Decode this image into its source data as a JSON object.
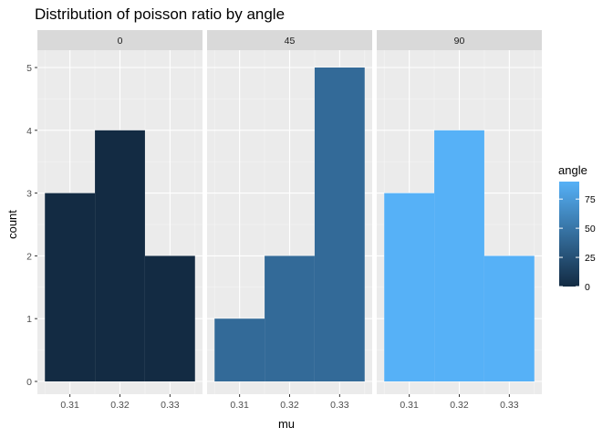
{
  "chart_data": {
    "type": "bar",
    "title": "Distribution of poisson ratio by angle",
    "xlabel": "mu",
    "ylabel": "count",
    "ylim": [
      0,
      5.2
    ],
    "xlim": [
      0.3035,
      0.3365
    ],
    "yticks": [
      "0",
      "1",
      "2",
      "3",
      "4",
      "5"
    ],
    "xticks": [
      "0.31",
      "0.32",
      "0.33"
    ],
    "xtick_values": [
      0.31,
      0.32,
      0.33
    ],
    "grid": true,
    "legend": {
      "title": "angle",
      "placement": "right",
      "ticks": [
        "0",
        "25",
        "50",
        "75"
      ],
      "tick_values": [
        0,
        25,
        50,
        75
      ],
      "range": [
        0,
        90
      ],
      "low_color": "#132B43",
      "high_color": "#56B1F7"
    },
    "facets": [
      {
        "label": "0",
        "angle": 0,
        "color": "#132B43",
        "bins": [
          {
            "x0": 0.305,
            "x1": 0.315,
            "count": 3
          },
          {
            "x0": 0.315,
            "x1": 0.325,
            "count": 4
          },
          {
            "x0": 0.325,
            "x1": 0.335,
            "count": 2
          }
        ]
      },
      {
        "label": "45",
        "angle": 45,
        "color": "#336A98",
        "bins": [
          {
            "x0": 0.305,
            "x1": 0.315,
            "count": 1
          },
          {
            "x0": 0.315,
            "x1": 0.325,
            "count": 2
          },
          {
            "x0": 0.325,
            "x1": 0.335,
            "count": 5
          }
        ]
      },
      {
        "label": "90",
        "angle": 90,
        "color": "#56B1F7",
        "bins": [
          {
            "x0": 0.305,
            "x1": 0.315,
            "count": 3
          },
          {
            "x0": 0.315,
            "x1": 0.325,
            "count": 4
          },
          {
            "x0": 0.325,
            "x1": 0.335,
            "count": 2
          }
        ]
      }
    ]
  }
}
